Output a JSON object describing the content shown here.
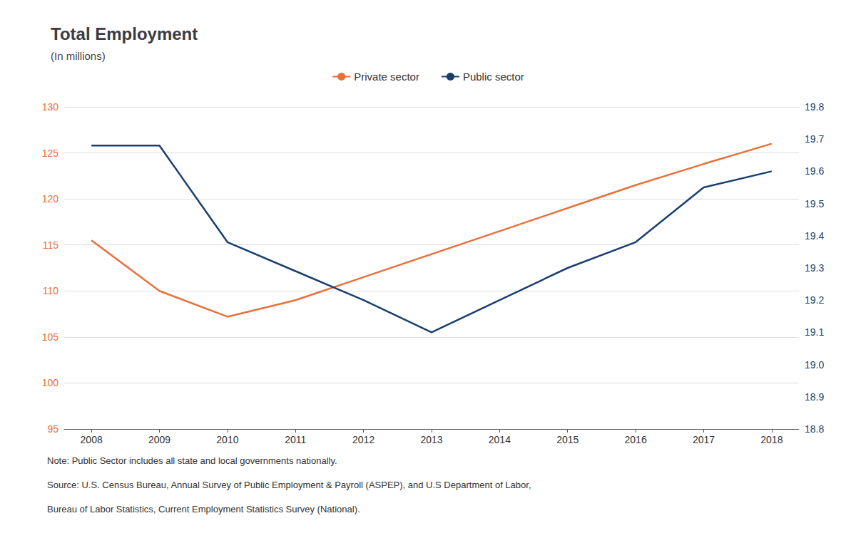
{
  "chart_data": {
    "type": "line",
    "title": "Total Employment",
    "subtitle": "(In millions)",
    "annotations": [
      "Note: Public Sector includes all state and local governments nationally.",
      "Source: U.S. Census Bureau, Annual Survey of Public Employment & Payroll (ASPEP), and U.S Department of Labor,",
      "Bureau of Labor Statistics, Current Employment Statistics Survey (National)."
    ],
    "x": [
      2008,
      2009,
      2010,
      2011,
      2012,
      2013,
      2014,
      2015,
      2016,
      2017,
      2018
    ],
    "xlim": [
      2007.6,
      2018.4
    ],
    "xticks": [
      2008,
      2009,
      2010,
      2011,
      2012,
      2013,
      2014,
      2015,
      2016,
      2017,
      2018
    ],
    "ylim": [
      95,
      130
    ],
    "yticks": [
      95,
      100,
      105,
      110,
      115,
      120,
      125,
      130
    ],
    "y2lim": [
      18.8,
      19.8
    ],
    "y2ticks": [
      18.8,
      18.9,
      {
        "value": 19.0,
        "label": "19.0"
      },
      19.1,
      19.2,
      19.3,
      19.4,
      19.5,
      19.6,
      19.7,
      19.8
    ],
    "grid": true,
    "legend": "top",
    "series": [
      {
        "name": "Private sector",
        "color": "#E8703A",
        "values": [
          115.5,
          110.0,
          107.2,
          109.0,
          111.5,
          114.0,
          116.5,
          119.0,
          121.5,
          123.8,
          126.0
        ]
      },
      {
        "name": "Public sector",
        "color": "#1A3F6F",
        "axis": "y2",
        "values": [
          19.68,
          19.68,
          19.38,
          19.29,
          19.2,
          19.1,
          19.2,
          19.3,
          19.38,
          19.55,
          19.6
        ]
      }
    ]
  }
}
